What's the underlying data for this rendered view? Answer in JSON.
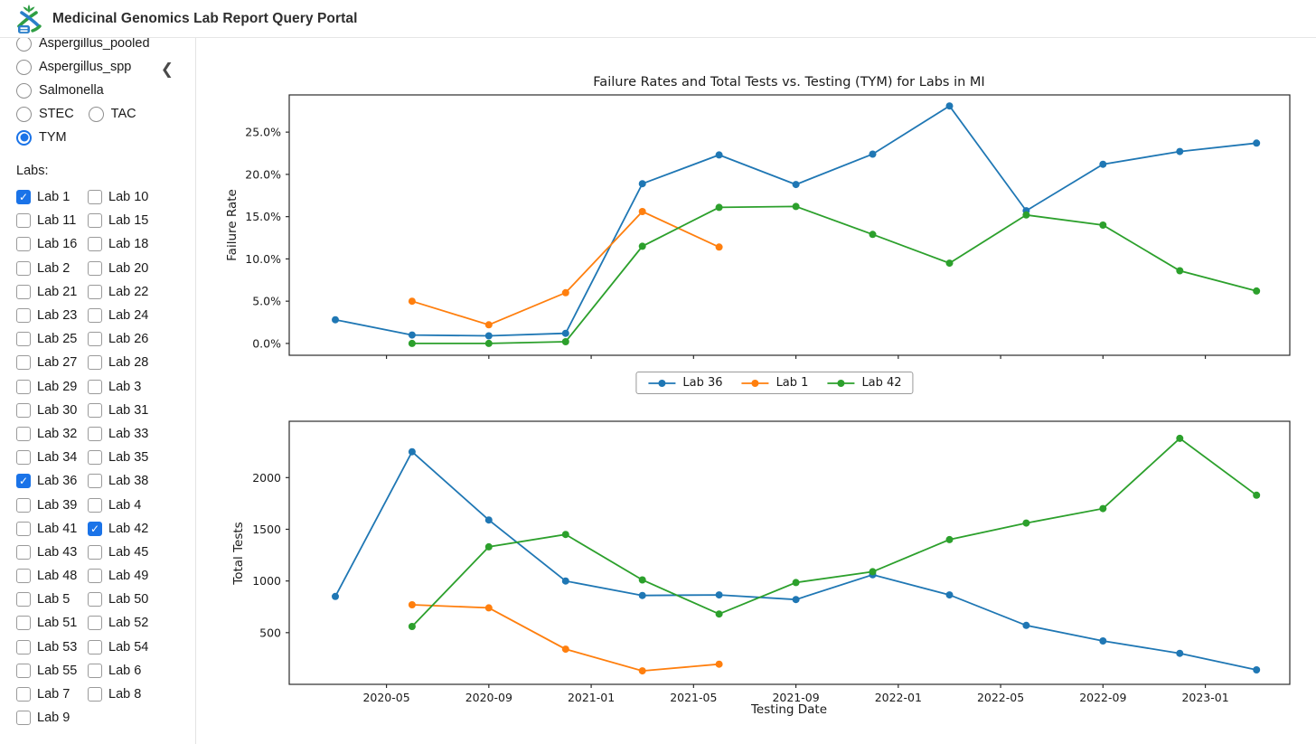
{
  "header": {
    "title": "Medicinal Genomics Lab Report Query Portal"
  },
  "icons": {
    "collapse_chevron": "❮"
  },
  "accent_color": "#1a73e8",
  "sidebar": {
    "assays": [
      {
        "label": "Aspergillus_pooled",
        "selected": false,
        "row": 0
      },
      {
        "label": "Aspergillus_spp",
        "selected": false,
        "row": 1
      },
      {
        "label": "Salmonella",
        "selected": false,
        "row": 2
      },
      {
        "label": "STEC",
        "selected": false,
        "row": 3
      },
      {
        "label": "TAC",
        "selected": false,
        "row": 3
      },
      {
        "label": "TYM",
        "selected": true,
        "row": 4
      }
    ],
    "labs_label": "Labs:",
    "labs": [
      {
        "label": "Lab 1",
        "checked": true
      },
      {
        "label": "Lab 10",
        "checked": false
      },
      {
        "label": "Lab 11",
        "checked": false
      },
      {
        "label": "Lab 15",
        "checked": false
      },
      {
        "label": "Lab 16",
        "checked": false
      },
      {
        "label": "Lab 18",
        "checked": false
      },
      {
        "label": "Lab 2",
        "checked": false
      },
      {
        "label": "Lab 20",
        "checked": false
      },
      {
        "label": "Lab 21",
        "checked": false
      },
      {
        "label": "Lab 22",
        "checked": false
      },
      {
        "label": "Lab 23",
        "checked": false
      },
      {
        "label": "Lab 24",
        "checked": false
      },
      {
        "label": "Lab 25",
        "checked": false
      },
      {
        "label": "Lab 26",
        "checked": false
      },
      {
        "label": "Lab 27",
        "checked": false
      },
      {
        "label": "Lab 28",
        "checked": false
      },
      {
        "label": "Lab 29",
        "checked": false
      },
      {
        "label": "Lab 3",
        "checked": false
      },
      {
        "label": "Lab 30",
        "checked": false
      },
      {
        "label": "Lab 31",
        "checked": false
      },
      {
        "label": "Lab 32",
        "checked": false
      },
      {
        "label": "Lab 33",
        "checked": false
      },
      {
        "label": "Lab 34",
        "checked": false
      },
      {
        "label": "Lab 35",
        "checked": false
      },
      {
        "label": "Lab 36",
        "checked": true
      },
      {
        "label": "Lab 38",
        "checked": false
      },
      {
        "label": "Lab 39",
        "checked": false
      },
      {
        "label": "Lab 4",
        "checked": false
      },
      {
        "label": "Lab 41",
        "checked": false
      },
      {
        "label": "Lab 42",
        "checked": true
      },
      {
        "label": "Lab 43",
        "checked": false
      },
      {
        "label": "Lab 45",
        "checked": false
      },
      {
        "label": "Lab 48",
        "checked": false
      },
      {
        "label": "Lab 49",
        "checked": false
      },
      {
        "label": "Lab 5",
        "checked": false
      },
      {
        "label": "Lab 50",
        "checked": false
      },
      {
        "label": "Lab 51",
        "checked": false
      },
      {
        "label": "Lab 52",
        "checked": false
      },
      {
        "label": "Lab 53",
        "checked": false
      },
      {
        "label": "Lab 54",
        "checked": false
      },
      {
        "label": "Lab 55",
        "checked": false
      },
      {
        "label": "Lab 6",
        "checked": false
      },
      {
        "label": "Lab 7",
        "checked": false
      },
      {
        "label": "Lab 8",
        "checked": false
      },
      {
        "label": "Lab 9",
        "checked": false
      }
    ]
  },
  "chart_data": [
    {
      "type": "line",
      "title": "Failure Rates and Total Tests vs. Testing (TYM) for Labs in MI",
      "ylabel": "Failure Rate",
      "xlabel": "",
      "x_epoch": "2020-03",
      "xlim_month_offsets": [
        -1.8,
        37.3
      ],
      "ylim": [
        -1.4,
        29.4
      ],
      "grid": false,
      "legend_position": "below-center",
      "xticks": [
        {
          "v": "2020-05",
          "label": ""
        },
        {
          "v": "2020-09",
          "label": ""
        },
        {
          "v": "2021-01",
          "label": ""
        },
        {
          "v": "2021-05",
          "label": ""
        },
        {
          "v": "2021-09",
          "label": ""
        },
        {
          "v": "2022-01",
          "label": ""
        },
        {
          "v": "2022-05",
          "label": ""
        },
        {
          "v": "2022-09",
          "label": ""
        },
        {
          "v": "2023-01",
          "label": ""
        }
      ],
      "yticks": [
        {
          "v": 0,
          "label": "0.0%"
        },
        {
          "v": 5,
          "label": "5.0%"
        },
        {
          "v": 10,
          "label": "10.0%"
        },
        {
          "v": 15,
          "label": "15.0%"
        },
        {
          "v": 20,
          "label": "20.0%"
        },
        {
          "v": 25,
          "label": "25.0%"
        }
      ],
      "series": [
        {
          "name": "Lab 36",
          "color": "#1f77b4",
          "x": [
            "2020-03",
            "2020-06",
            "2020-09",
            "2020-12",
            "2021-03",
            "2021-06",
            "2021-09",
            "2021-12",
            "2022-03",
            "2022-06",
            "2022-09",
            "2022-12",
            "2023-03"
          ],
          "y": [
            2.8,
            1.0,
            0.9,
            1.2,
            18.9,
            22.3,
            18.8,
            22.4,
            28.1,
            15.7,
            21.2,
            22.7,
            23.7
          ]
        },
        {
          "name": "Lab 1",
          "color": "#ff7f0e",
          "x": [
            "2020-06",
            "2020-09",
            "2020-12",
            "2021-03",
            "2021-06"
          ],
          "y": [
            5.0,
            2.2,
            6.0,
            15.6,
            11.4
          ]
        },
        {
          "name": "Lab 42",
          "color": "#2ca02c",
          "x": [
            "2020-06",
            "2020-09",
            "2020-12",
            "2021-03",
            "2021-06",
            "2021-09",
            "2021-12",
            "2022-03",
            "2022-06",
            "2022-09",
            "2022-12",
            "2023-03"
          ],
          "y": [
            0.0,
            0.0,
            0.2,
            11.5,
            16.1,
            16.2,
            12.9,
            9.5,
            15.2,
            14.0,
            8.6,
            6.2
          ]
        }
      ]
    },
    {
      "type": "line",
      "title": "",
      "ylabel": "Total Tests",
      "xlabel": "Testing Date",
      "x_epoch": "2020-03",
      "xlim_month_offsets": [
        -1.8,
        37.3
      ],
      "ylim": [
        0,
        2545
      ],
      "grid": false,
      "xticks": [
        {
          "v": "2020-05",
          "label": "2020-05"
        },
        {
          "v": "2020-09",
          "label": "2020-09"
        },
        {
          "v": "2021-01",
          "label": "2021-01"
        },
        {
          "v": "2021-05",
          "label": "2021-05"
        },
        {
          "v": "2021-09",
          "label": "2021-09"
        },
        {
          "v": "2022-01",
          "label": "2022-01"
        },
        {
          "v": "2022-05",
          "label": "2022-05"
        },
        {
          "v": "2022-09",
          "label": "2022-09"
        },
        {
          "v": "2023-01",
          "label": "2023-01"
        }
      ],
      "yticks": [
        {
          "v": 500,
          "label": "500"
        },
        {
          "v": 1000,
          "label": "1000"
        },
        {
          "v": 1500,
          "label": "1500"
        },
        {
          "v": 2000,
          "label": "2000"
        }
      ],
      "series": [
        {
          "name": "Lab 36",
          "color": "#1f77b4",
          "x": [
            "2020-03",
            "2020-06",
            "2020-09",
            "2020-12",
            "2021-03",
            "2021-06",
            "2021-09",
            "2021-12",
            "2022-03",
            "2022-06",
            "2022-09",
            "2022-12",
            "2023-03"
          ],
          "y": [
            850,
            2250,
            1590,
            1000,
            860,
            865,
            820,
            1060,
            865,
            570,
            420,
            300,
            140
          ]
        },
        {
          "name": "Lab 1",
          "color": "#ff7f0e",
          "x": [
            "2020-06",
            "2020-09",
            "2020-12",
            "2021-03",
            "2021-06"
          ],
          "y": [
            770,
            740,
            340,
            130,
            195
          ]
        },
        {
          "name": "Lab 42",
          "color": "#2ca02c",
          "x": [
            "2020-06",
            "2020-09",
            "2020-12",
            "2021-03",
            "2021-06",
            "2021-09",
            "2021-12",
            "2022-03",
            "2022-06",
            "2022-09",
            "2022-12",
            "2023-03"
          ],
          "y": [
            560,
            1330,
            1450,
            1010,
            680,
            985,
            1090,
            1400,
            1560,
            1700,
            2380,
            1830
          ]
        }
      ]
    }
  ],
  "legend": {
    "entries": [
      {
        "label": "Lab 36",
        "color": "#1f77b4"
      },
      {
        "label": "Lab 1",
        "color": "#ff7f0e"
      },
      {
        "label": "Lab 42",
        "color": "#2ca02c"
      }
    ]
  }
}
